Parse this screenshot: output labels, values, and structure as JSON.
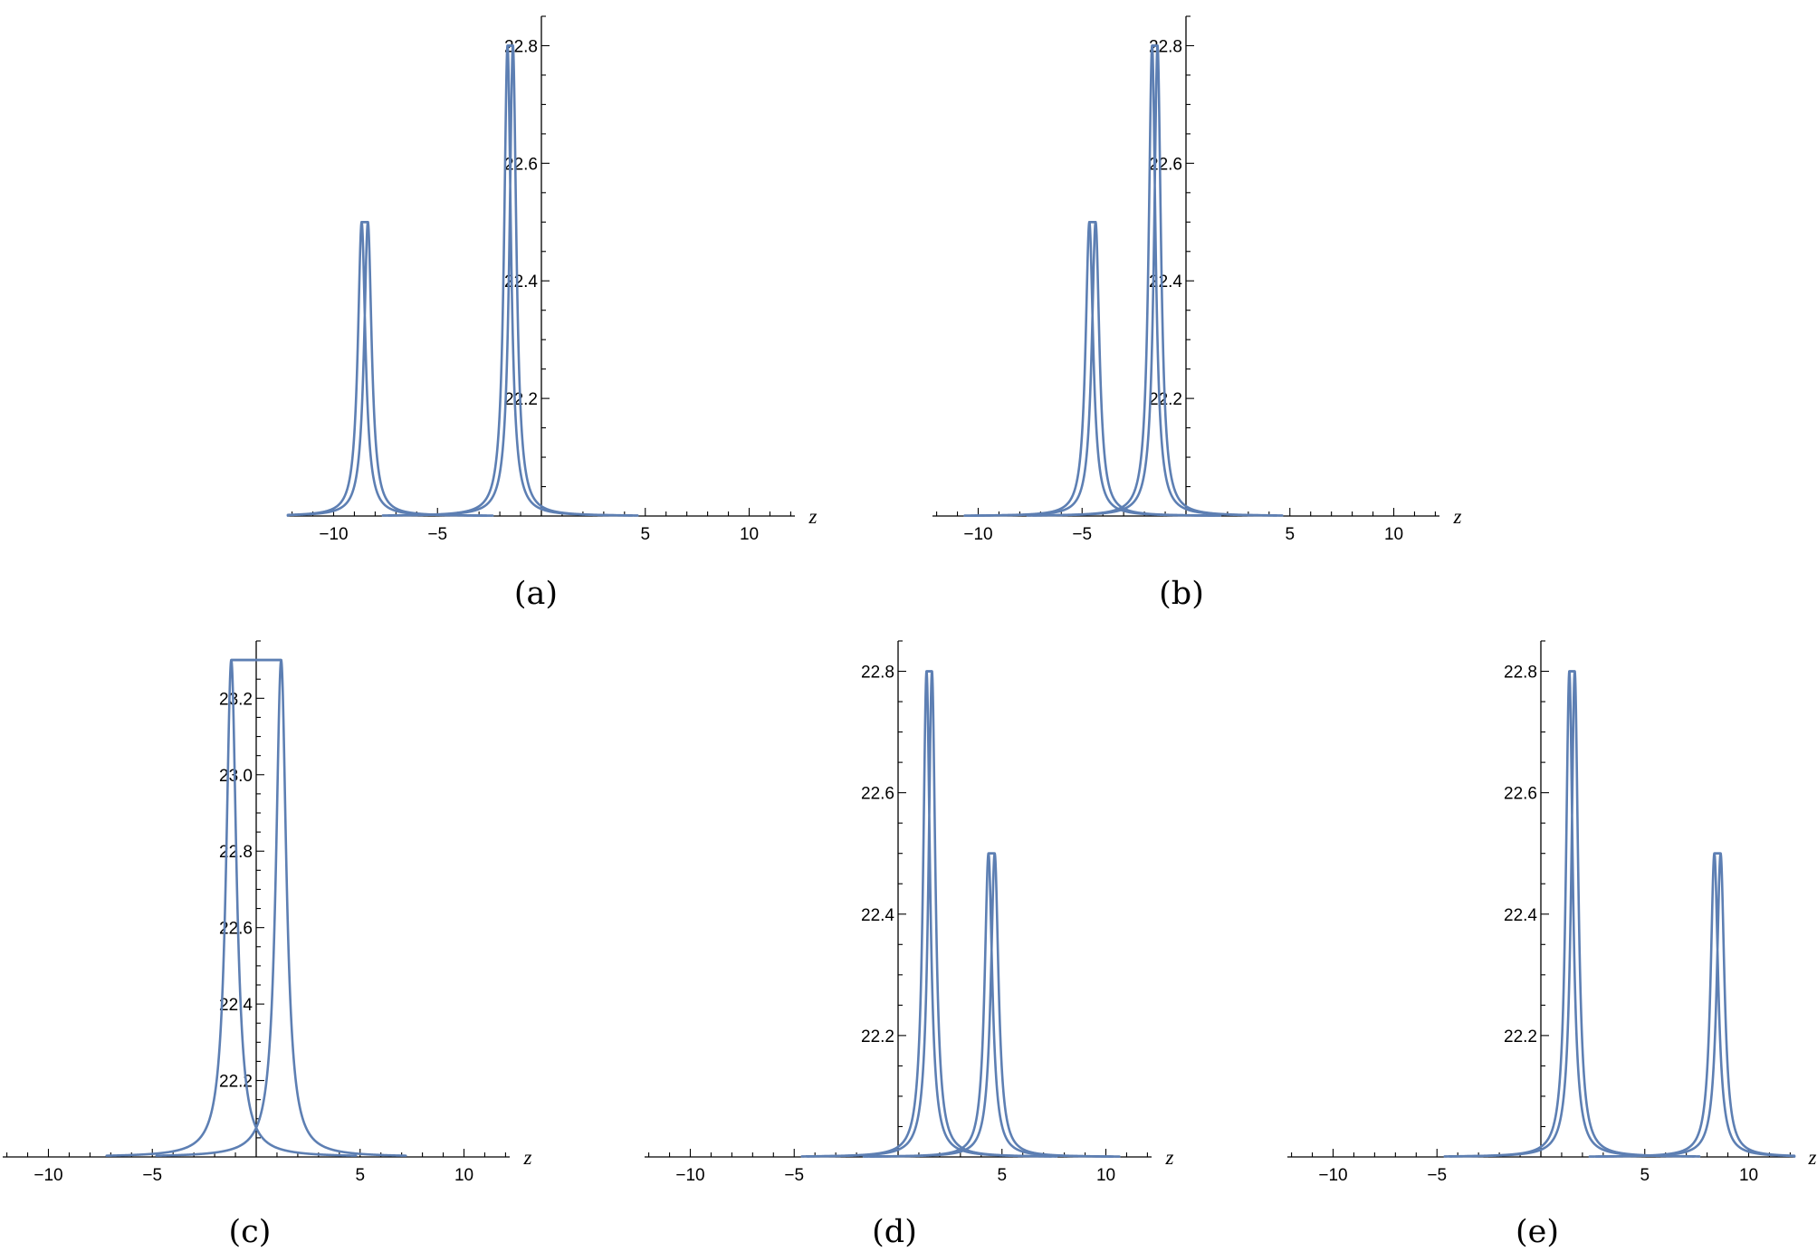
{
  "figure": {
    "panels": [
      {
        "caption": "(a)",
        "chart_data": {
          "type": "line",
          "xlabel": "z",
          "ylabel": "",
          "xlim": [
            -12.2,
            12.2
          ],
          "ylim": [
            22.0,
            22.85
          ],
          "x_ticks": [
            -10,
            -5,
            5,
            10
          ],
          "x_tick_labels": [
            "−10",
            "−5",
            "5",
            "10"
          ],
          "y_ticks": [
            22.2,
            22.4,
            22.6,
            22.8
          ],
          "y_tick_labels": [
            "22.2",
            "22.4",
            "22.6",
            "22.8"
          ],
          "y_minor_step": 0.05,
          "x_minor_step": 1,
          "series": [
            {
              "loops": [
                {
                  "center": -8.5,
                  "peak": 22.5,
                  "half_width": 0.15,
                  "width": 0.22
                },
                {
                  "center": -1.5,
                  "peak": 22.8,
                  "half_width": 0.13,
                  "width": 0.2
                }
              ]
            }
          ]
        }
      },
      {
        "caption": "(b)",
        "chart_data": {
          "type": "line",
          "xlabel": "z",
          "ylabel": "",
          "xlim": [
            -12.2,
            12.2
          ],
          "ylim": [
            22.0,
            22.85
          ],
          "x_ticks": [
            -10,
            -5,
            5,
            10
          ],
          "x_tick_labels": [
            "−10",
            "−5",
            "5",
            "10"
          ],
          "y_ticks": [
            22.2,
            22.4,
            22.6,
            22.8
          ],
          "y_tick_labels": [
            "22.2",
            "22.4",
            "22.6",
            "22.8"
          ],
          "y_minor_step": 0.05,
          "x_minor_step": 1,
          "series": [
            {
              "loops": [
                {
                  "center": -4.5,
                  "peak": 22.5,
                  "half_width": 0.15,
                  "width": 0.22
                },
                {
                  "center": -1.5,
                  "peak": 22.8,
                  "half_width": 0.13,
                  "width": 0.2
                }
              ]
            }
          ]
        }
      },
      {
        "caption": "(c)",
        "chart_data": {
          "type": "line",
          "xlabel": "z",
          "ylabel": "",
          "xlim": [
            -12.2,
            12.2
          ],
          "ylim": [
            22.0,
            23.35
          ],
          "x_ticks": [
            -10,
            -5,
            5,
            10
          ],
          "x_tick_labels": [
            "−10",
            "−5",
            "5",
            "10"
          ],
          "y_ticks": [
            22.2,
            22.4,
            22.6,
            22.8,
            23.0,
            23.2
          ],
          "y_tick_labels": [
            "22.2",
            "22.4",
            "22.6",
            "22.8",
            "23.0",
            "23.2"
          ],
          "y_minor_step": 0.05,
          "x_minor_step": 1,
          "series": [
            {
              "loops": [
                {
                  "center": 0.0,
                  "peak": 23.3,
                  "half_width": 1.2,
                  "width": 0.3
                }
              ]
            }
          ]
        }
      },
      {
        "caption": "(d)",
        "chart_data": {
          "type": "line",
          "xlabel": "z",
          "ylabel": "",
          "xlim": [
            -12.2,
            12.2
          ],
          "ylim": [
            22.0,
            22.85
          ],
          "x_ticks": [
            -10,
            -5,
            5,
            10
          ],
          "x_tick_labels": [
            "−10",
            "−5",
            "5",
            "10"
          ],
          "y_ticks": [
            22.2,
            22.4,
            22.6,
            22.8
          ],
          "y_tick_labels": [
            "22.2",
            "22.4",
            "22.6",
            "22.8"
          ],
          "y_minor_step": 0.05,
          "x_minor_step": 1,
          "series": [
            {
              "loops": [
                {
                  "center": 1.5,
                  "peak": 22.8,
                  "half_width": 0.13,
                  "width": 0.2
                },
                {
                  "center": 4.5,
                  "peak": 22.5,
                  "half_width": 0.15,
                  "width": 0.22
                }
              ]
            }
          ]
        }
      },
      {
        "caption": "(e)",
        "chart_data": {
          "type": "line",
          "xlabel": "z",
          "ylabel": "",
          "xlim": [
            -12.2,
            12.2
          ],
          "ylim": [
            22.0,
            22.85
          ],
          "x_ticks": [
            -10,
            -5,
            5,
            10
          ],
          "x_tick_labels": [
            "−10",
            "−5",
            "5",
            "10"
          ],
          "y_ticks": [
            22.2,
            22.4,
            22.6,
            22.8
          ],
          "y_tick_labels": [
            "22.2",
            "22.4",
            "22.6",
            "22.8"
          ],
          "y_minor_step": 0.05,
          "x_minor_step": 1,
          "series": [
            {
              "loops": [
                {
                  "center": 1.5,
                  "peak": 22.8,
                  "half_width": 0.13,
                  "width": 0.2
                },
                {
                  "center": 8.5,
                  "peak": 22.5,
                  "half_width": 0.15,
                  "width": 0.22
                }
              ]
            }
          ]
        }
      }
    ]
  }
}
